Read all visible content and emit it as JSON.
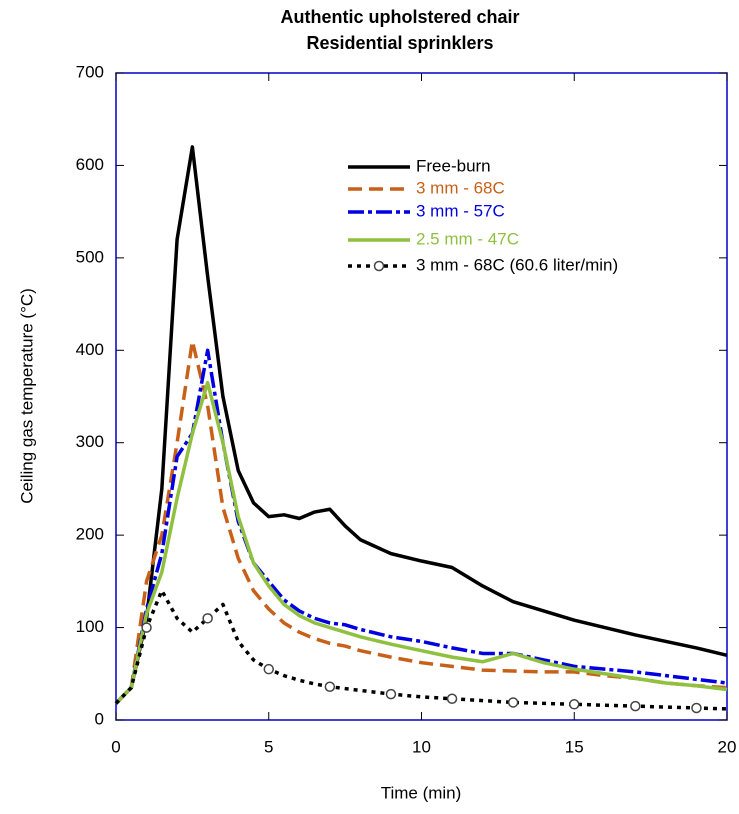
{
  "chart_data": {
    "type": "line",
    "title": "Authentic upholstered chair",
    "subtitle": "Residential sprinklers",
    "xlabel": "Time (min)",
    "ylabel": "Ceiling gas temperature (°C)",
    "xlim": [
      0,
      20
    ],
    "xticks": [
      0,
      5,
      10,
      15,
      20
    ],
    "ylim": [
      0,
      700
    ],
    "yticks": [
      0,
      100,
      200,
      300,
      400,
      500,
      600,
      700
    ],
    "x": [
      0,
      0.5,
      1,
      1.5,
      2,
      2.5,
      3,
      3.5,
      4,
      4.5,
      5,
      5.5,
      6,
      6.5,
      7,
      7.5,
      8,
      9,
      10,
      11,
      12,
      13,
      14,
      15,
      16,
      17,
      18,
      19,
      20
    ],
    "series": [
      {
        "name": "Free-burn",
        "color": "#000000",
        "dash": "solid",
        "values": [
          18,
          35,
          110,
          250,
          520,
          620,
          480,
          350,
          270,
          235,
          220,
          222,
          218,
          225,
          228,
          210,
          195,
          180,
          172,
          165,
          145,
          128,
          118,
          108,
          100,
          92,
          85,
          78,
          70
        ]
      },
      {
        "name": "3 mm - 68C",
        "color": "#c8601a",
        "dash": "dashed",
        "values": [
          18,
          35,
          150,
          200,
          300,
          410,
          340,
          230,
          175,
          140,
          120,
          105,
          95,
          88,
          83,
          80,
          75,
          68,
          62,
          58,
          54,
          53,
          52,
          52,
          48,
          45,
          40,
          37,
          35
        ]
      },
      {
        "name": "3 mm - 57C",
        "color": "#0000e0",
        "dash": "dashdot",
        "values": [
          18,
          35,
          120,
          180,
          285,
          310,
          400,
          300,
          215,
          170,
          150,
          130,
          118,
          110,
          105,
          103,
          98,
          90,
          85,
          78,
          72,
          72,
          65,
          58,
          55,
          52,
          48,
          44,
          40
        ]
      },
      {
        "name": "2.5 mm - 47C",
        "color": "#90c040",
        "dash": "solid",
        "values": [
          18,
          35,
          115,
          160,
          240,
          310,
          365,
          300,
          220,
          170,
          145,
          125,
          113,
          105,
          100,
          95,
          90,
          82,
          75,
          68,
          63,
          72,
          62,
          55,
          50,
          45,
          40,
          37,
          33
        ]
      },
      {
        "name": "3 mm - 68C (60.6 liter/min)",
        "color": "#000000",
        "dash": "dotted",
        "marker": "circle",
        "values": [
          18,
          35,
          100,
          140,
          110,
          95,
          110,
          125,
          85,
          65,
          55,
          48,
          43,
          39,
          36,
          34,
          32,
          28,
          25,
          23,
          21,
          19,
          18,
          17,
          16,
          15,
          14,
          13,
          12
        ]
      }
    ]
  }
}
